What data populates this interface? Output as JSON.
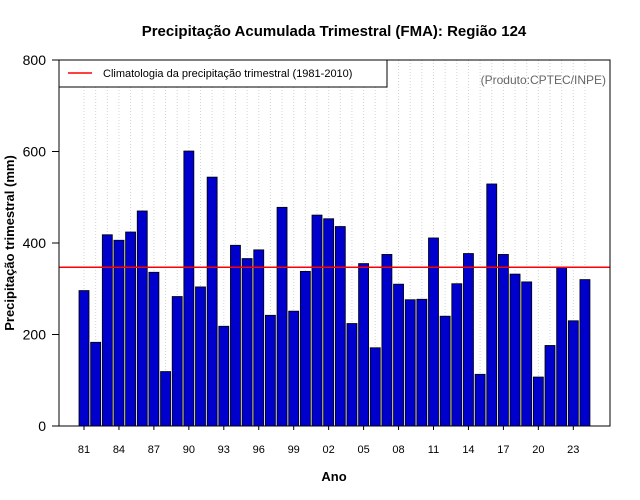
{
  "chart_data": {
    "type": "bar",
    "title": "Precipitação Acumulada Trimestral (FMA): Região 124",
    "xlabel": "Ano",
    "ylabel": "Precipitação trimestral (mm)",
    "source_note": "(Produto:CPTEC/INPE)",
    "ylim": [
      0,
      800
    ],
    "yticks": [
      0,
      200,
      400,
      600,
      800
    ],
    "xtick_labels": [
      "81",
      "84",
      "87",
      "90",
      "93",
      "96",
      "99",
      "02",
      "05",
      "08",
      "11",
      "14",
      "17",
      "20",
      "23"
    ],
    "categories": [
      "1981",
      "1982",
      "1983",
      "1984",
      "1985",
      "1986",
      "1987",
      "1988",
      "1989",
      "1990",
      "1991",
      "1992",
      "1993",
      "1994",
      "1995",
      "1996",
      "1997",
      "1998",
      "1999",
      "2000",
      "2001",
      "2002",
      "2003",
      "2004",
      "2005",
      "2006",
      "2007",
      "2008",
      "2009",
      "2010",
      "2011",
      "2012",
      "2013",
      "2014",
      "2015",
      "2016",
      "2017",
      "2018",
      "2019",
      "2020",
      "2021",
      "2022",
      "2023",
      "2024"
    ],
    "values": [
      296,
      183,
      418,
      406,
      424,
      470,
      336,
      119,
      283,
      601,
      304,
      544,
      218,
      395,
      366,
      385,
      242,
      478,
      251,
      338,
      461,
      453,
      436,
      224,
      355,
      171,
      375,
      310,
      276,
      277,
      411,
      240,
      311,
      377,
      113,
      529,
      375,
      332,
      315,
      107,
      176,
      346,
      230,
      320
    ],
    "climatology": {
      "label": "Climatologia da precipitação trimestral (1981-2010)",
      "value": 347
    },
    "legend_position": "top-left",
    "grid": true,
    "colors": {
      "bar_fill": "#0000cc",
      "bar_stroke": "#000000",
      "climatology_line": "#ff0000",
      "grid": "#d3d3d3",
      "note": "#666666"
    }
  }
}
